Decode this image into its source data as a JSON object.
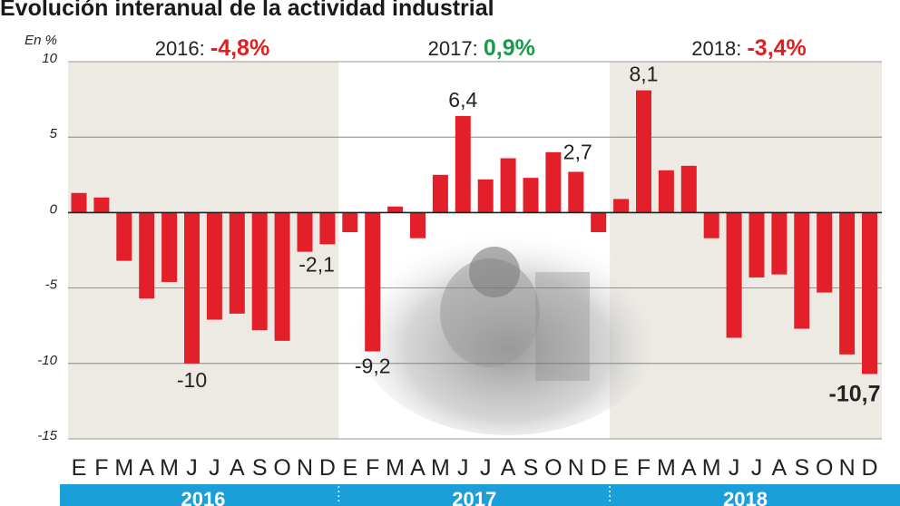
{
  "chart_data": {
    "type": "bar",
    "title": "Evolución interanual de la actividad industrial",
    "ylabel": "En %",
    "ylim": [
      -15,
      10
    ],
    "yticks": [
      10,
      5,
      0,
      -5,
      -10,
      -15
    ],
    "grid": true,
    "categories": [
      "E",
      "F",
      "M",
      "A",
      "M",
      "J",
      "J",
      "A",
      "S",
      "O",
      "N",
      "D",
      "E",
      "F",
      "M",
      "A",
      "M",
      "J",
      "J",
      "A",
      "S",
      "O",
      "N",
      "D",
      "E",
      "F",
      "M",
      "A",
      "M",
      "J",
      "J",
      "A",
      "S",
      "O",
      "N",
      "D"
    ],
    "values": [
      1.3,
      1.0,
      -3.2,
      -5.7,
      -4.6,
      -10.0,
      -7.1,
      -6.7,
      -7.8,
      -8.5,
      -2.6,
      -2.1,
      -1.3,
      -9.2,
      0.4,
      -1.7,
      2.5,
      6.4,
      2.2,
      3.6,
      2.3,
      4.0,
      2.7,
      -1.3,
      0.9,
      8.1,
      2.8,
      3.1,
      -1.7,
      -8.3,
      -4.3,
      -4.1,
      -7.7,
      -5.3,
      -9.4,
      -10.7
    ],
    "data_labels": [
      {
        "index": 5,
        "text": "-10"
      },
      {
        "index": 11,
        "text": "-2,1"
      },
      {
        "index": 13,
        "text": "-9,2"
      },
      {
        "index": 17,
        "text": "6,4"
      },
      {
        "index": 22,
        "text": "2,7"
      },
      {
        "index": 25,
        "text": "8,1"
      },
      {
        "index": 35,
        "text": "-10,7"
      }
    ],
    "years": [
      {
        "label": "2016",
        "summary_label": "2016:",
        "summary_value": "-4,8%",
        "summary_color": "#e02020"
      },
      {
        "label": "2017",
        "summary_label": "2017:",
        "summary_value": "0,9%",
        "summary_color": "#1a9a4a"
      },
      {
        "label": "2018",
        "summary_label": "2018:",
        "summary_value": "-3,4%",
        "summary_color": "#e02020"
      }
    ],
    "colors": {
      "bar": "#e3202a",
      "shade": "#eceae3",
      "band": "#1a9fd9",
      "grid": "#777777"
    }
  }
}
